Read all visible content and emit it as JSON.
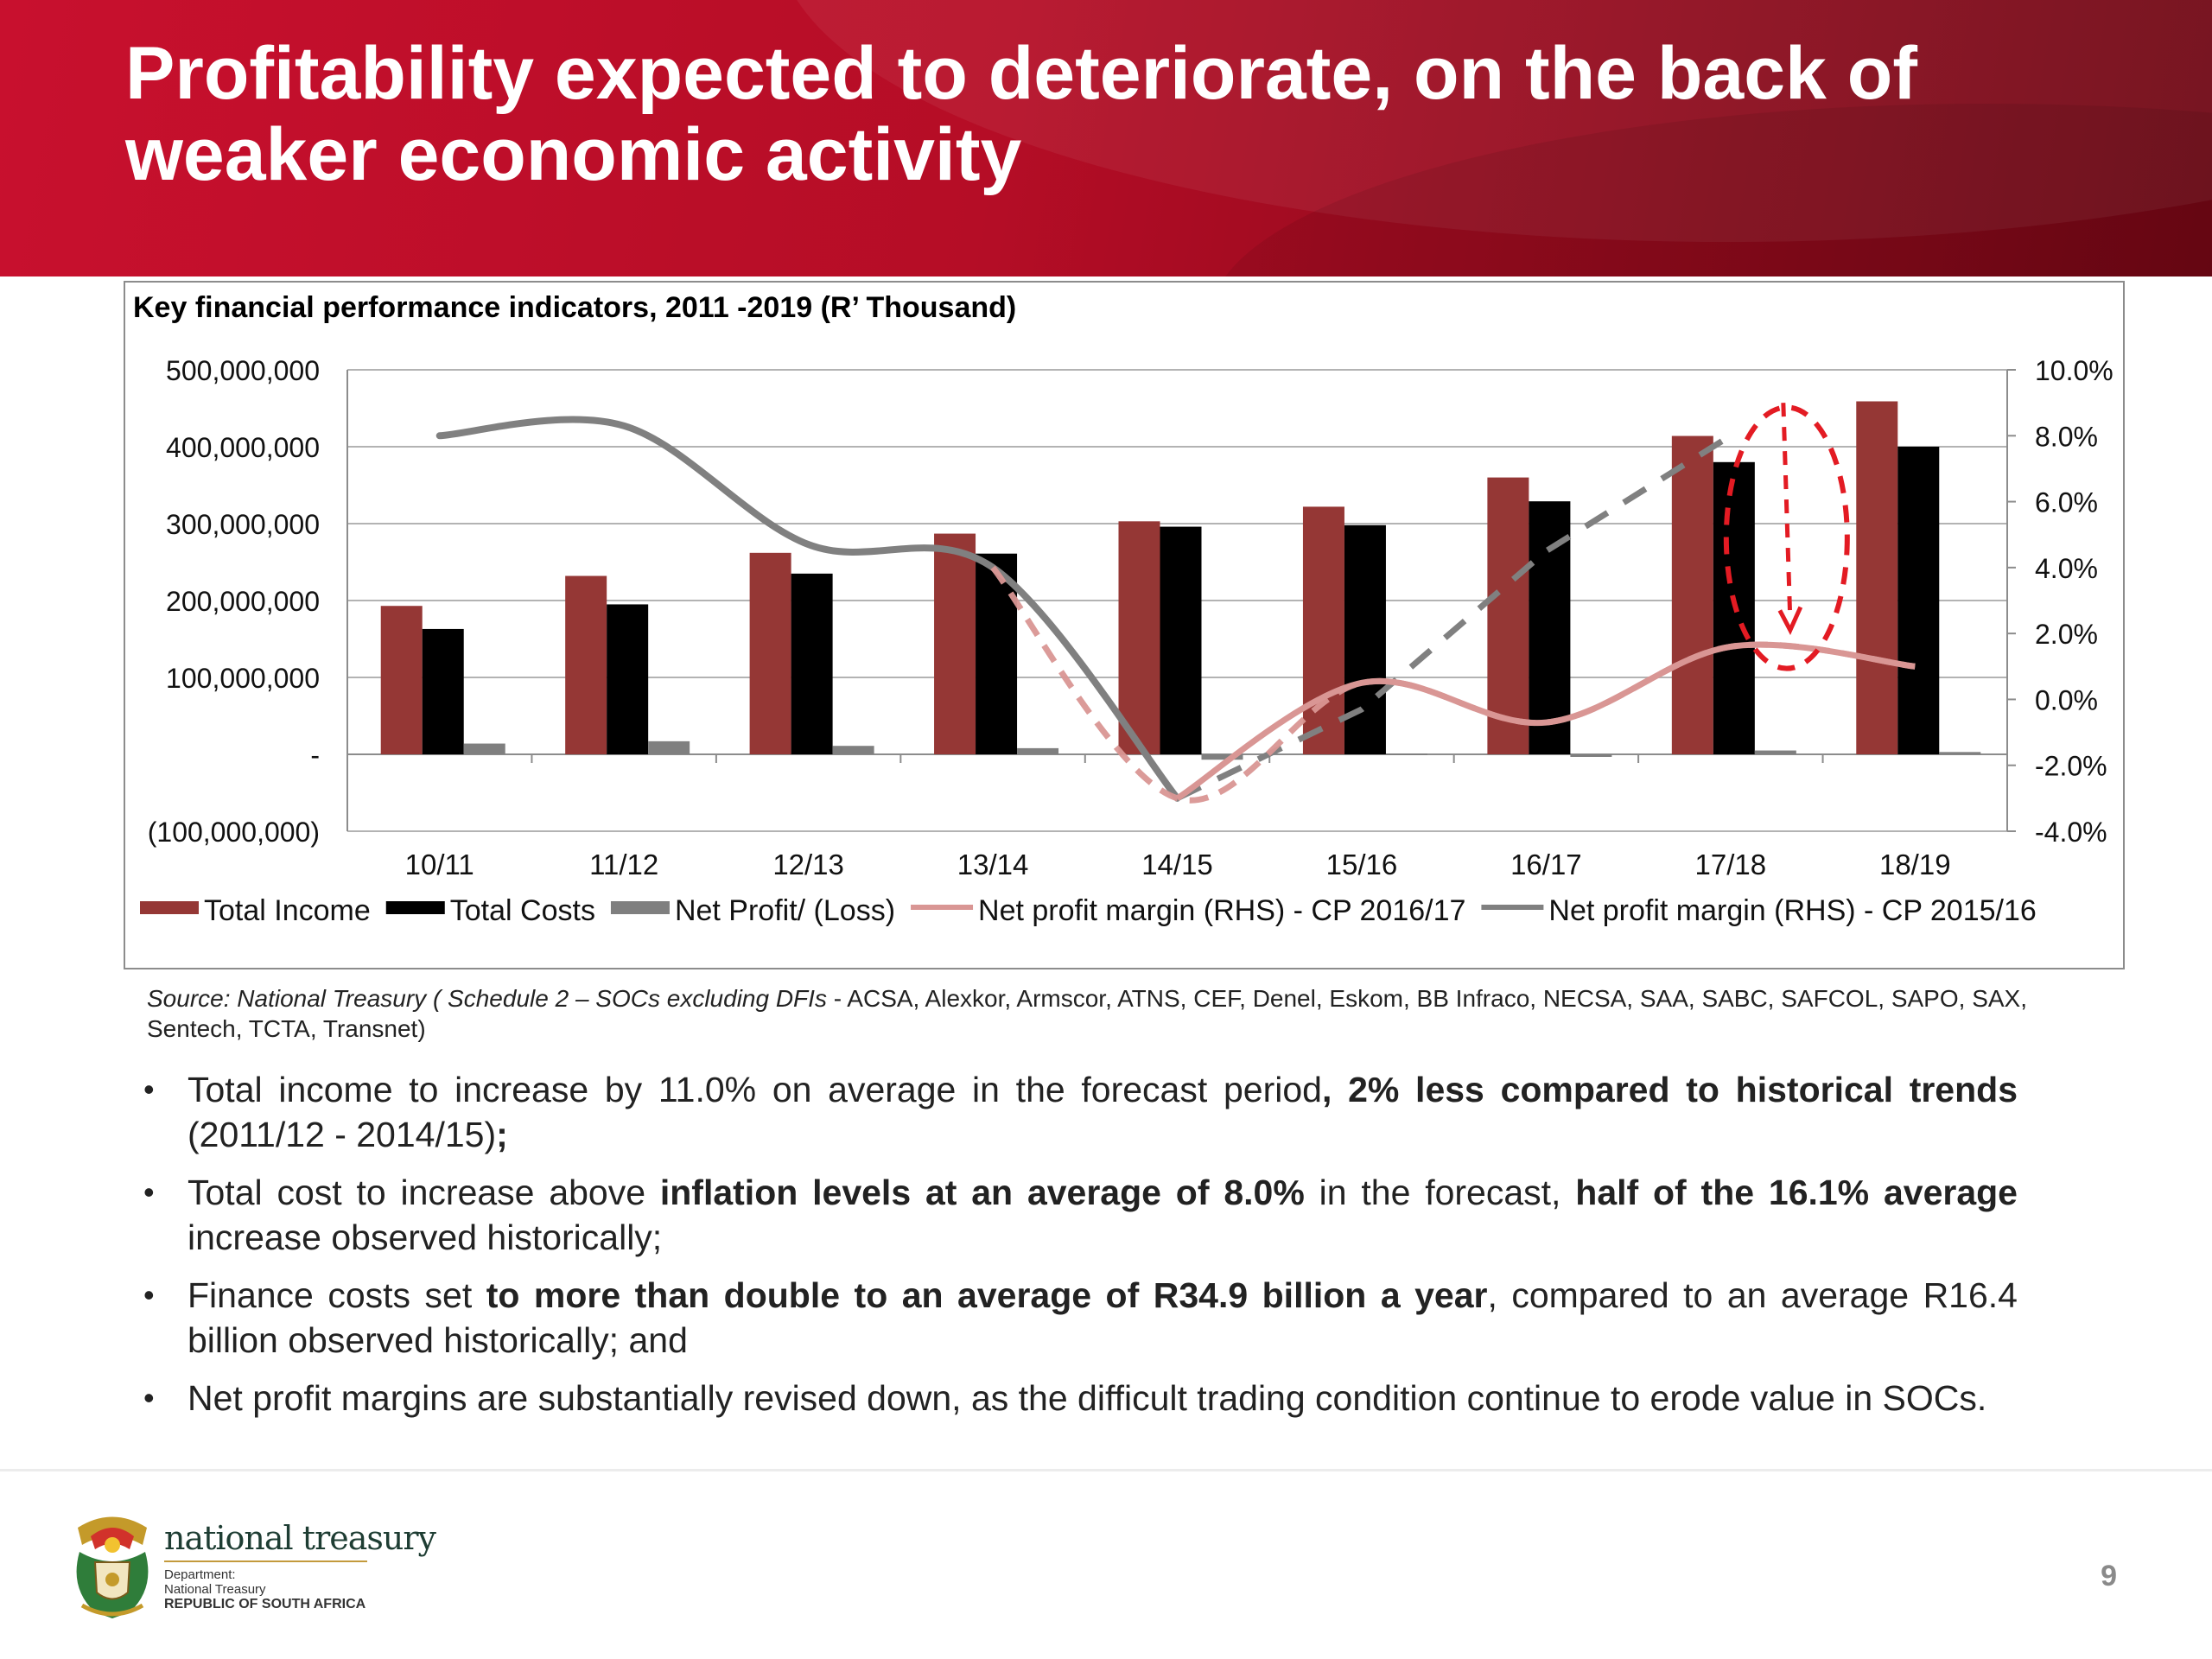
{
  "slide": {
    "title": "Profitability expected to deteriorate, on the back of weaker economic activity",
    "page_number": "9"
  },
  "chart_data": {
    "type": "bar",
    "title": "Key financial performance indicators, 2011 -2019 (R’ Thousand)",
    "categories": [
      "10/11",
      "11/12",
      "12/13",
      "13/14",
      "14/15",
      "15/16",
      "16/17",
      "17/18",
      "18/19"
    ],
    "y_left": {
      "range": [
        -100000000,
        500000000
      ],
      "ticks": [
        "(100,000,000)",
        "-",
        "100,000,000",
        "200,000,000",
        "300,000,000",
        "400,000,000",
        "500,000,000"
      ]
    },
    "y_right": {
      "range": [
        -4,
        10
      ],
      "ticks": [
        "-4.0%",
        "-2.0%",
        "0.0%",
        "2.0%",
        "4.0%",
        "6.0%",
        "8.0%",
        "10.0%"
      ]
    },
    "grid": true,
    "legend_position": "bottom",
    "series": [
      {
        "name": "Total Income",
        "kind": "bar",
        "axis": "left",
        "color": "#953735",
        "values": [
          193000000,
          232000000,
          262000000,
          287000000,
          303000000,
          322000000,
          360000000,
          414000000,
          459000000
        ]
      },
      {
        "name": "Total Costs",
        "kind": "bar",
        "axis": "left",
        "color": "#000000",
        "values": [
          163000000,
          195000000,
          235000000,
          261000000,
          296000000,
          298000000,
          329000000,
          380000000,
          400000000
        ]
      },
      {
        "name": "Net Profit/ (Loss)",
        "kind": "bar",
        "axis": "left",
        "color": "#7f7f7f",
        "values": [
          14000000,
          17000000,
          11000000,
          8000000,
          -7000000,
          0,
          -1000000,
          5000000,
          3000000
        ]
      },
      {
        "name": "Net profit margin (RHS) - CP 2016/17",
        "kind": "line",
        "axis": "right",
        "color": "#d99694",
        "values": [
          null,
          null,
          null,
          4.0,
          -3.0,
          0.5,
          -0.7,
          1.6,
          1.0
        ]
      },
      {
        "name": "Net profit margin (RHS) - CP 2015/16",
        "kind": "line",
        "axis": "right",
        "color": "#808080",
        "values": [
          8.0,
          8.3,
          4.7,
          4.0,
          -3.0,
          -0.3,
          4.5,
          8.0,
          null
        ]
      }
    ]
  },
  "source": {
    "italic": "Source: National Treasury ( Schedule 2 – SOCs excluding DFIs",
    "text": " - ACSA, Alexkor, Armscor, ATNS, CEF, Denel, Eskom, BB Infraco, NECSA, SAA, SABC, SAFCOL, SAPO, SAX, Sentech, TCTA, Transnet)"
  },
  "bullets": [
    {
      "a": "Total income to increase by 11.0% on average in the forecast period",
      "b": ", 2% less compared to historical trends",
      "c": " (2011/12 - 2014/15)",
      "d": ";",
      "e": ""
    },
    {
      "a": "Total cost to increase above ",
      "b": "inflation levels at an average of 8.0%",
      "c": " in the forecast, ",
      "d": "half of the 16.1% average",
      "e": " increase observed historically;"
    },
    {
      "a": "Finance costs set ",
      "b": "to more than double to an average of R34.9 billion a year",
      "c": ", compared to an average R16.4 billion observed historically; and",
      "d": "",
      "e": ""
    },
    {
      "a": "Net profit margins are substantially revised down, as the difficult trading condition continue to erode value in SOCs.",
      "b": "",
      "c": "",
      "d": "",
      "e": ""
    }
  ],
  "footer": {
    "org_name": "national treasury",
    "dept_line1": "Department:",
    "dept_line2": "National Treasury",
    "dept_line3": "REPUBLIC OF SOUTH AFRICA"
  },
  "colors": {
    "banner": "#c8102e",
    "annotation": "#e31b23"
  }
}
